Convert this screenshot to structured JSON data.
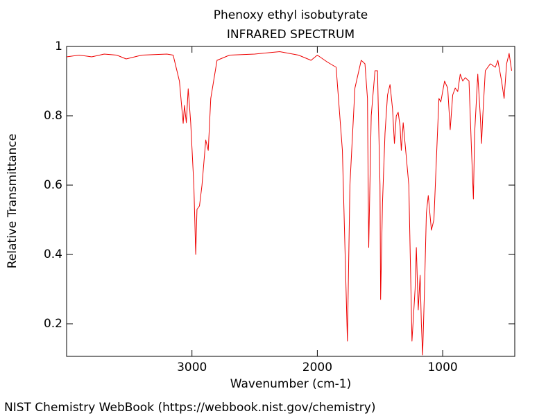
{
  "chart_data": {
    "type": "line",
    "title": "Phenoxy ethyl isobutyrate",
    "subtitle": "INFRARED SPECTRUM",
    "x_label": "Wavenumber (cm-1)",
    "y_label": "Relative Transmittance",
    "footer": "NIST Chemistry WebBook (https://webbook.nist.gov/chemistry)",
    "xlim": [
      4000,
      425
    ],
    "ylim": [
      0.106,
      1
    ],
    "xticks": [
      3000,
      2000,
      1000
    ],
    "yticks": [
      0.2,
      0.4,
      0.6,
      0.8,
      1
    ],
    "x": [
      4000,
      3900,
      3800,
      3700,
      3600,
      3525,
      3400,
      3200,
      3150,
      3100,
      3070,
      3060,
      3045,
      3030,
      3010,
      2985,
      2970,
      2960,
      2940,
      2920,
      2890,
      2870,
      2850,
      2800,
      2700,
      2500,
      2300,
      2150,
      2050,
      2000,
      1920,
      1850,
      1800,
      1760,
      1740,
      1700,
      1650,
      1620,
      1600,
      1590,
      1570,
      1540,
      1520,
      1500,
      1495,
      1480,
      1460,
      1440,
      1420,
      1400,
      1385,
      1370,
      1355,
      1340,
      1330,
      1315,
      1300,
      1270,
      1245,
      1220,
      1210,
      1195,
      1180,
      1170,
      1160,
      1145,
      1130,
      1115,
      1090,
      1070,
      1045,
      1030,
      1015,
      1000,
      985,
      960,
      940,
      920,
      900,
      880,
      860,
      840,
      820,
      790,
      770,
      755,
      745,
      720,
      700,
      690,
      680,
      660,
      620,
      580,
      560,
      530,
      510,
      490,
      470,
      450
    ],
    "series": [
      {
        "name": "Phenoxy ethyl isobutyrate",
        "color": "#ee0000",
        "values": [
          0.97,
          0.975,
          0.97,
          0.978,
          0.975,
          0.964,
          0.975,
          0.978,
          0.975,
          0.9,
          0.778,
          0.83,
          0.78,
          0.878,
          0.78,
          0.6,
          0.4,
          0.53,
          0.54,
          0.6,
          0.73,
          0.7,
          0.85,
          0.96,
          0.975,
          0.978,
          0.985,
          0.975,
          0.96,
          0.975,
          0.955,
          0.94,
          0.7,
          0.15,
          0.6,
          0.88,
          0.96,
          0.95,
          0.85,
          0.42,
          0.8,
          0.93,
          0.93,
          0.6,
          0.27,
          0.55,
          0.75,
          0.86,
          0.89,
          0.82,
          0.72,
          0.8,
          0.81,
          0.77,
          0.7,
          0.78,
          0.72,
          0.6,
          0.15,
          0.3,
          0.42,
          0.24,
          0.34,
          0.2,
          0.11,
          0.3,
          0.52,
          0.57,
          0.47,
          0.5,
          0.72,
          0.85,
          0.84,
          0.87,
          0.9,
          0.88,
          0.76,
          0.86,
          0.88,
          0.87,
          0.92,
          0.9,
          0.91,
          0.9,
          0.7,
          0.56,
          0.75,
          0.92,
          0.8,
          0.72,
          0.8,
          0.93,
          0.95,
          0.94,
          0.96,
          0.9,
          0.85,
          0.95,
          0.98,
          0.93
        ]
      }
    ]
  }
}
